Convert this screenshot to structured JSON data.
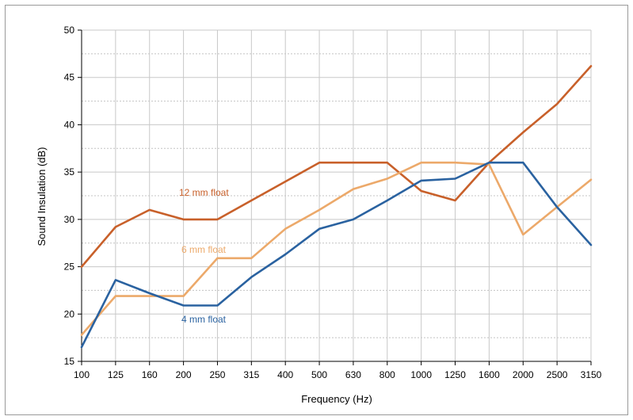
{
  "chart_data": {
    "type": "line",
    "xlabel": "Frequency (Hz)",
    "ylabel": "Sound Insulation (dB)",
    "categories": [
      "100",
      "125",
      "160",
      "200",
      "250",
      "315",
      "400",
      "500",
      "630",
      "800",
      "1000",
      "1250",
      "1600",
      "2000",
      "2500",
      "3150"
    ],
    "ylim": [
      15,
      50
    ],
    "yticks": [
      15,
      20,
      25,
      30,
      35,
      40,
      45,
      50
    ],
    "grid": true,
    "series": [
      {
        "name": "12 mm float",
        "color": "#c8602a",
        "values": [
          25,
          29.2,
          31,
          30,
          30,
          32,
          34,
          36,
          36,
          36,
          33,
          32,
          36,
          39.2,
          42.2,
          46.2
        ]
      },
      {
        "name": "6 mm float",
        "color": "#eca96a",
        "values": [
          17.8,
          21.9,
          21.9,
          21.9,
          25.9,
          25.9,
          29,
          31,
          33.2,
          34.3,
          36,
          36,
          35.8,
          28.4,
          31.3,
          34.2
        ]
      },
      {
        "name": "4 mm float",
        "color": "#2a62a0",
        "values": [
          16.5,
          23.6,
          22.2,
          20.9,
          20.9,
          23.9,
          26.3,
          29,
          30,
          32,
          34.1,
          34.3,
          36,
          36,
          31.3,
          27.3
        ]
      }
    ]
  }
}
